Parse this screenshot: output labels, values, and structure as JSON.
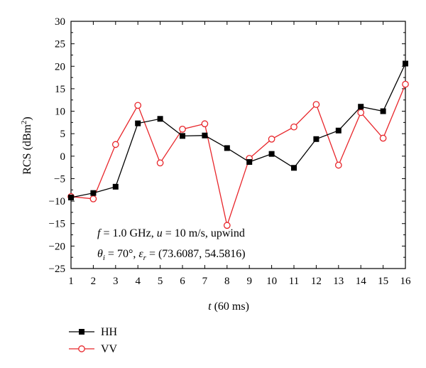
{
  "chart_data": {
    "type": "line",
    "xlabel_var": "t",
    "xlabel_unit": " (60 ms)",
    "ylabel_main": "RCS (dBm",
    "ylabel_sup": "2",
    "ylabel_close": ")",
    "xlim": [
      1,
      16
    ],
    "ylim": [
      -25,
      30
    ],
    "xticks": [
      1,
      2,
      3,
      4,
      5,
      6,
      7,
      8,
      9,
      10,
      11,
      12,
      13,
      14,
      15,
      16
    ],
    "yticks": [
      30,
      25,
      20,
      15,
      10,
      5,
      0,
      -5,
      -10,
      -15,
      -20,
      -25
    ],
    "ytick_labels": [
      "30",
      "25",
      "20",
      "15",
      "10",
      "5",
      "0",
      "−5",
      "−10",
      "−15",
      "−20",
      "−25"
    ],
    "grid": false,
    "legend_position": "bottom-left, below plot",
    "annotation_line1": {
      "f": "f",
      "f_eq": " = 1.0 GHz, ",
      "u": "u",
      "u_eq": " = 10 m/s, upwind"
    },
    "annotation_line2": {
      "theta": "θ",
      "theta_sub": "i",
      "theta_eq": " = 70°, ",
      "eps": "ε",
      "eps_sub": "r",
      "eps_eq": " = (73.6087, 54.5816)"
    },
    "series": [
      {
        "name": "HH",
        "color": "#000000",
        "marker": "filled-square",
        "x": [
          1,
          2,
          3,
          4,
          5,
          6,
          7,
          8,
          9,
          10,
          11,
          12,
          13,
          14,
          15,
          16
        ],
        "y": [
          -9.2,
          -8.2,
          -6.8,
          7.3,
          8.3,
          4.5,
          4.6,
          1.8,
          -1.3,
          0.5,
          -2.6,
          3.8,
          5.7,
          11.0,
          10.0,
          20.6
        ]
      },
      {
        "name": "VV",
        "color": "#e8262b",
        "marker": "open-circle",
        "x": [
          1,
          2,
          3,
          4,
          5,
          6,
          7,
          8,
          9,
          10,
          11,
          12,
          13,
          14,
          15,
          16
        ],
        "y": [
          -9.0,
          -9.5,
          2.6,
          11.3,
          -1.5,
          6.0,
          7.2,
          -15.4,
          -0.5,
          3.8,
          6.5,
          11.5,
          -2.0,
          9.7,
          4.0,
          16.0
        ]
      }
    ]
  }
}
